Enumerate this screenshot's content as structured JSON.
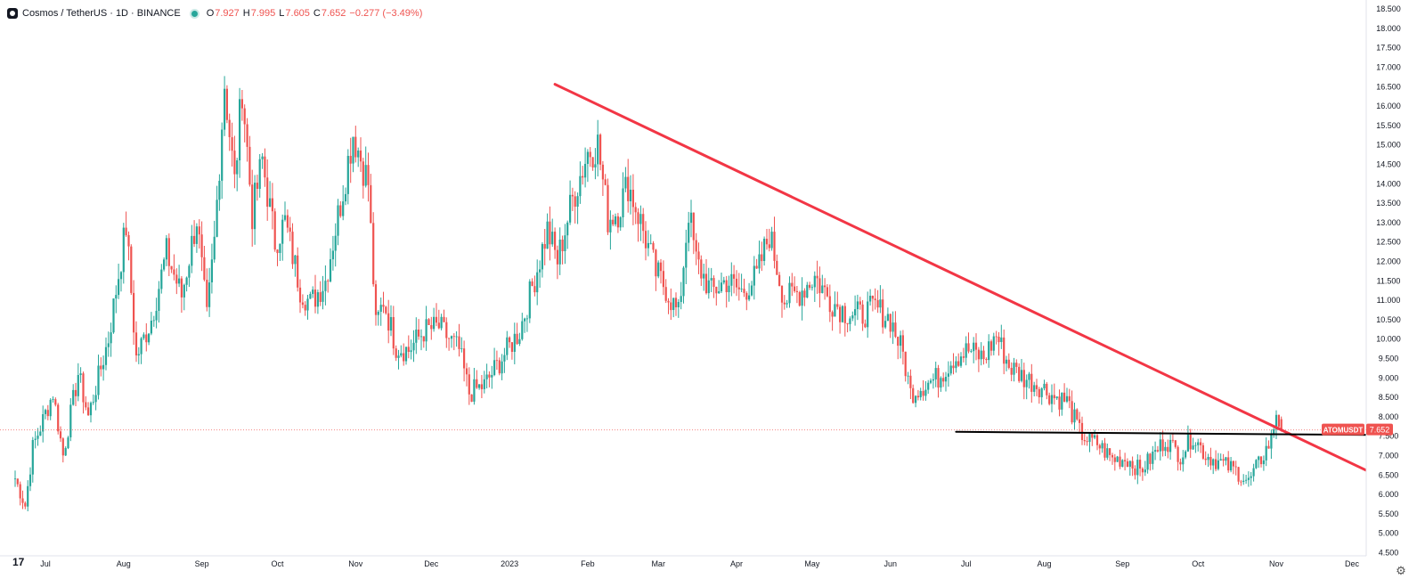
{
  "legend": {
    "symbol": "Cosmos / TetherUS · 1D · BINANCE",
    "o_label": "O",
    "o_value": "7.927",
    "h_label": "H",
    "h_value": "7.995",
    "l_label": "L",
    "l_value": "7.605",
    "c_label": "C",
    "c_value": "7.652",
    "change": "−0.277 (−3.49%)"
  },
  "price_tag": {
    "ticker": "ATOMUSDT",
    "price": "7.652"
  },
  "colors": {
    "up": "#26a69a",
    "down": "#ef5350",
    "trendline": "#f23645",
    "support": "#000000",
    "axis_text": "#131722"
  },
  "icons": {
    "tv_logo": "tradingview-logo-icon",
    "settings": "gear-icon"
  },
  "tv_logo_text": "17",
  "chart_data": {
    "type": "candlestick",
    "title": "Cosmos / TetherUS · 1D · BINANCE",
    "ylim": [
      4.5,
      18.5
    ],
    "yticks": [
      "4.500",
      "5.000",
      "5.500",
      "6.000",
      "6.500",
      "7.000",
      "7.500",
      "8.000",
      "8.500",
      "9.000",
      "9.500",
      "10.000",
      "10.500",
      "11.000",
      "11.500",
      "12.000",
      "12.500",
      "13.000",
      "13.500",
      "14.000",
      "14.500",
      "15.000",
      "15.500",
      "16.000",
      "16.500",
      "17.000",
      "17.500",
      "18.000",
      "18.500"
    ],
    "xticks": [
      {
        "label": "Jul",
        "date": "2022-07-01"
      },
      {
        "label": "Aug",
        "date": "2022-08-01"
      },
      {
        "label": "Sep",
        "date": "2022-09-01"
      },
      {
        "label": "Oct",
        "date": "2022-10-01"
      },
      {
        "label": "Nov",
        "date": "2022-11-01"
      },
      {
        "label": "Dec",
        "date": "2022-12-01"
      },
      {
        "label": "2023",
        "date": "2023-01-01"
      },
      {
        "label": "Feb",
        "date": "2023-02-01"
      },
      {
        "label": "Mar",
        "date": "2023-03-01"
      },
      {
        "label": "Apr",
        "date": "2023-04-01"
      },
      {
        "label": "May",
        "date": "2023-05-01"
      },
      {
        "label": "Jun",
        "date": "2023-06-01"
      },
      {
        "label": "Jul",
        "date": "2023-07-01"
      },
      {
        "label": "Aug",
        "date": "2023-08-01"
      },
      {
        "label": "Sep",
        "date": "2023-09-01"
      },
      {
        "label": "Oct",
        "date": "2023-10-01"
      },
      {
        "label": "Nov",
        "date": "2023-11-01"
      },
      {
        "label": "Dec",
        "date": "2023-12-01"
      }
    ],
    "price_path": [
      [
        "2022-06-19",
        6.4
      ],
      [
        "2022-06-23",
        5.7
      ],
      [
        "2022-06-26",
        7.2
      ],
      [
        "2022-07-04",
        8.6
      ],
      [
        "2022-07-08",
        7.0
      ],
      [
        "2022-07-14",
        9.1
      ],
      [
        "2022-07-18",
        8.0
      ],
      [
        "2022-07-26",
        10.0
      ],
      [
        "2022-08-02",
        12.9
      ],
      [
        "2022-08-06",
        9.5
      ],
      [
        "2022-08-12",
        10.5
      ],
      [
        "2022-08-18",
        12.2
      ],
      [
        "2022-08-24",
        11.1
      ],
      [
        "2022-08-30",
        13.1
      ],
      [
        "2022-09-03",
        10.5
      ],
      [
        "2022-09-06",
        12.5
      ],
      [
        "2022-09-10",
        16.6
      ],
      [
        "2022-09-14",
        14.0
      ],
      [
        "2022-09-17",
        16.5
      ],
      [
        "2022-09-21",
        13.2
      ],
      [
        "2022-09-25",
        14.6
      ],
      [
        "2022-09-30",
        12.5
      ],
      [
        "2022-10-04",
        13.0
      ],
      [
        "2022-10-10",
        11.3
      ],
      [
        "2022-10-14",
        10.9
      ],
      [
        "2022-10-20",
        11.5
      ],
      [
        "2022-10-26",
        13.5
      ],
      [
        "2022-10-31",
        15.3
      ],
      [
        "2022-11-06",
        14.0
      ],
      [
        "2022-11-09",
        10.3
      ],
      [
        "2022-11-12",
        11.0
      ],
      [
        "2022-11-17",
        9.8
      ],
      [
        "2022-11-22",
        9.7
      ],
      [
        "2022-11-28",
        10.2
      ],
      [
        "2022-12-04",
        10.3
      ],
      [
        "2022-12-12",
        9.7
      ],
      [
        "2022-12-16",
        8.6
      ],
      [
        "2022-12-22",
        8.8
      ],
      [
        "2022-12-28",
        9.4
      ],
      [
        "2023-01-05",
        10.2
      ],
      [
        "2023-01-12",
        11.8
      ],
      [
        "2023-01-16",
        12.8
      ],
      [
        "2023-01-20",
        12.0
      ],
      [
        "2023-01-26",
        13.6
      ],
      [
        "2023-02-01",
        14.8
      ],
      [
        "2023-02-05",
        15.0
      ],
      [
        "2023-02-09",
        13.1
      ],
      [
        "2023-02-13",
        13.3
      ],
      [
        "2023-02-17",
        14.0
      ],
      [
        "2023-02-22",
        13.0
      ],
      [
        "2023-02-28",
        11.7
      ],
      [
        "2023-03-04",
        11.3
      ],
      [
        "2023-03-09",
        10.6
      ],
      [
        "2023-03-13",
        13.3
      ],
      [
        "2023-03-16",
        12.0
      ],
      [
        "2023-03-22",
        11.2
      ],
      [
        "2023-03-28",
        11.5
      ],
      [
        "2023-04-03",
        11.2
      ],
      [
        "2023-04-09",
        11.6
      ],
      [
        "2023-04-14",
        12.7
      ],
      [
        "2023-04-20",
        11.0
      ],
      [
        "2023-04-26",
        11.2
      ],
      [
        "2023-05-02",
        11.6
      ],
      [
        "2023-05-08",
        11.0
      ],
      [
        "2023-05-14",
        10.7
      ],
      [
        "2023-05-20",
        10.6
      ],
      [
        "2023-05-26",
        10.8
      ],
      [
        "2023-06-01",
        10.5
      ],
      [
        "2023-06-06",
        9.6
      ],
      [
        "2023-06-09",
        8.6
      ],
      [
        "2023-06-14",
        8.8
      ],
      [
        "2023-06-20",
        9.0
      ],
      [
        "2023-06-26",
        9.5
      ],
      [
        "2023-07-02",
        9.7
      ],
      [
        "2023-07-08",
        9.5
      ],
      [
        "2023-07-13",
        10.1
      ],
      [
        "2023-07-18",
        9.3
      ],
      [
        "2023-07-24",
        9.0
      ],
      [
        "2023-07-30",
        8.8
      ],
      [
        "2023-08-05",
        8.5
      ],
      [
        "2023-08-10",
        8.4
      ],
      [
        "2023-08-15",
        7.6
      ],
      [
        "2023-08-18",
        7.4
      ],
      [
        "2023-08-22",
        7.3
      ],
      [
        "2023-08-28",
        6.9
      ],
      [
        "2023-09-03",
        6.9
      ],
      [
        "2023-09-08",
        6.6
      ],
      [
        "2023-09-12",
        6.9
      ],
      [
        "2023-09-18",
        7.4
      ],
      [
        "2023-09-24",
        7.0
      ],
      [
        "2023-09-29",
        7.5
      ],
      [
        "2023-10-04",
        7.0
      ],
      [
        "2023-10-10",
        6.8
      ],
      [
        "2023-10-16",
        6.6
      ],
      [
        "2023-10-21",
        6.3
      ],
      [
        "2023-10-26",
        6.9
      ],
      [
        "2023-10-30",
        7.4
      ],
      [
        "2023-11-01",
        8.1
      ],
      [
        "2023-11-03",
        7.65
      ]
    ],
    "last_candle": {
      "open": 7.927,
      "high": 7.995,
      "low": 7.605,
      "close": 7.652
    },
    "current_price": 7.652,
    "drawings": [
      {
        "name": "descending-trendline",
        "color": "#f23645",
        "from": {
          "date": "2023-01-19",
          "price": 16.55
        },
        "to": {
          "date": "2023-12-28",
          "price": 5.95
        }
      },
      {
        "name": "support-line",
        "color": "#000000",
        "from": {
          "date": "2023-06-27",
          "price": 7.6
        },
        "to": {
          "date": "2023-12-09",
          "price": 7.52
        }
      }
    ],
    "grid": false,
    "legend_position": "top-left"
  }
}
